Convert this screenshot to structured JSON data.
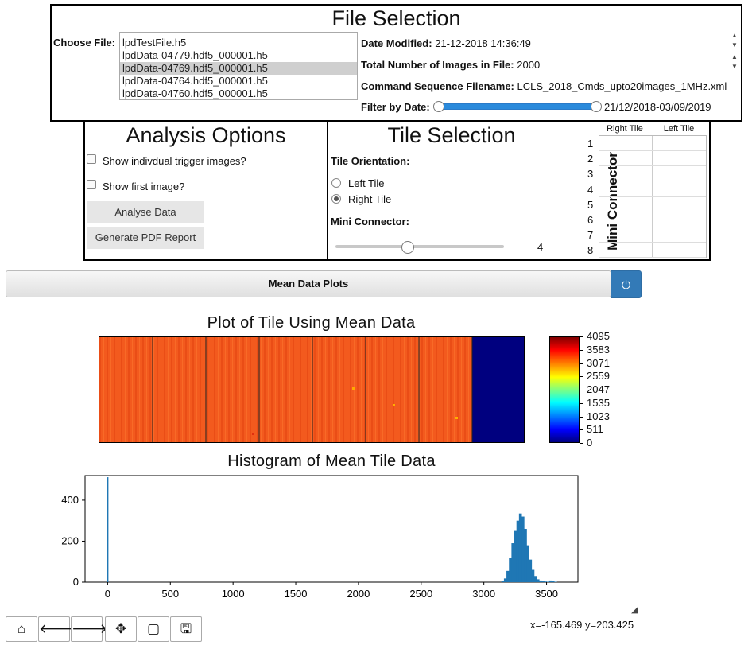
{
  "file_selection": {
    "title": "File Selection",
    "choose_label": "Choose File:",
    "files": [
      "lpdTestFile.h5",
      "lpdData-04779.hdf5_000001.h5",
      "lpdData-04769.hdf5_000001.h5",
      "lpdData-04764.hdf5_000001.h5",
      "lpdData-04760.hdf5_000001.h5"
    ],
    "selected_index": 2,
    "date_modified_label": "Date Modified:",
    "date_modified": "21-12-2018 14:36:49",
    "num_images_label": "Total Number of Images in File:",
    "num_images": "2000",
    "cmd_seq_label": "Command Sequence Filename:",
    "cmd_seq": "LCLS_2018_Cmds_upto20images_1MHz.xml",
    "filter_label": "Filter by Date:",
    "filter_range": "21/12/2018-03/09/2019"
  },
  "analysis": {
    "title": "Analysis Options",
    "opt_trigger": "Show indivdual trigger images?",
    "opt_first": "Show first image?",
    "analyse_btn": "Analyse Data",
    "pdf_btn": "Generate PDF Report"
  },
  "tile": {
    "title": "Tile Selection",
    "orientation_label": "Tile Orientation:",
    "left_tile": "Left Tile",
    "right_tile": "Right Tile",
    "selected_orientation": "Right Tile",
    "mini_label": "Mini Connector:",
    "mini_value": "4",
    "mini_slider_fraction": 0.43,
    "grid_title": "Mini Connector",
    "col_right": "Right Tile",
    "col_left": "Left Tile",
    "rows": [
      "1",
      "2",
      "3",
      "4",
      "5",
      "6",
      "7",
      "8"
    ]
  },
  "mean_bar": {
    "label": "Mean Data Plots",
    "icon": "power-icon"
  },
  "colors": {
    "accent": "#337ab7",
    "hist_bar": "#1f77b4",
    "slider_fill": "#2a8adb"
  },
  "heatmap": {
    "title": "Plot of Tile Using Mean Data",
    "colorbar_ticks": [
      "4095",
      "3583",
      "3071",
      "2559",
      "2047",
      "1535",
      "1023",
      "511",
      "0"
    ]
  },
  "chart_data": {
    "type": "bar",
    "title": "Histogram of Mean Tile Data",
    "xlabel": "",
    "ylabel": "",
    "xlim": [
      -180,
      3750
    ],
    "ylim": [
      0,
      520
    ],
    "x_ticks": [
      "0",
      "500",
      "1000",
      "1500",
      "2000",
      "2500",
      "3000",
      "3500"
    ],
    "y_ticks": [
      "0",
      "200",
      "400"
    ],
    "x": [
      0,
      3140,
      3160,
      3180,
      3200,
      3220,
      3240,
      3260,
      3280,
      3300,
      3320,
      3340,
      3360,
      3380,
      3400,
      3420,
      3440,
      3460,
      3480,
      3500,
      3520,
      3540,
      3560
    ],
    "values": [
      512,
      4,
      18,
      55,
      120,
      190,
      250,
      300,
      335,
      320,
      260,
      180,
      110,
      60,
      30,
      14,
      8,
      5,
      3,
      2,
      8,
      6,
      2
    ]
  },
  "toolbar": {
    "buttons": [
      "home-icon",
      "back-icon",
      "forward-icon",
      "pan-icon",
      "zoom-rect-icon",
      "save-icon"
    ],
    "coords": "x=-165.469 y=203.425"
  }
}
